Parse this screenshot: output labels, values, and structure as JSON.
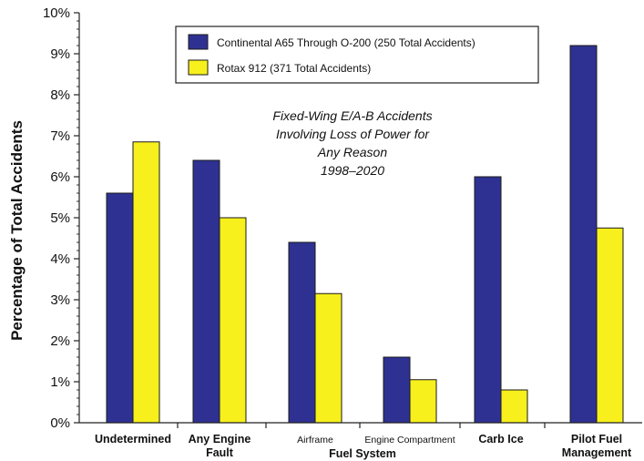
{
  "chart_data": {
    "type": "bar",
    "ylabel": "Percentage of Total Accidents",
    "ylim": [
      0,
      10
    ],
    "yticks": [
      "0%",
      "1%",
      "2%",
      "3%",
      "4%",
      "5%",
      "6%",
      "7%",
      "8%",
      "9%",
      "10%"
    ],
    "categories": [
      [
        "Undetermined"
      ],
      [
        "Any Engine",
        "Fault"
      ],
      [
        "Airframe"
      ],
      [
        "Engine Compartment"
      ],
      [
        "Carb Ice"
      ],
      [
        "Pilot Fuel",
        "Management"
      ]
    ],
    "category_group": "Fuel System",
    "series": [
      {
        "name": "Continental  A65 Through O-200 (250 Total Accidents)",
        "color": "#2e3192",
        "values": [
          5.6,
          6.4,
          4.4,
          1.6,
          6.0,
          9.2
        ]
      },
      {
        "name": "Rotax 912 (371 Total Accidents)",
        "color": "#f7f01c",
        "values": [
          6.85,
          5.0,
          3.15,
          1.05,
          0.8,
          4.75
        ]
      }
    ],
    "annotation": [
      "Fixed-Wing E/A-B Accidents",
      "Involving Loss of Power for",
      "Any Reason",
      "1998–2020"
    ],
    "legend_position": "top-right",
    "grid": false
  }
}
